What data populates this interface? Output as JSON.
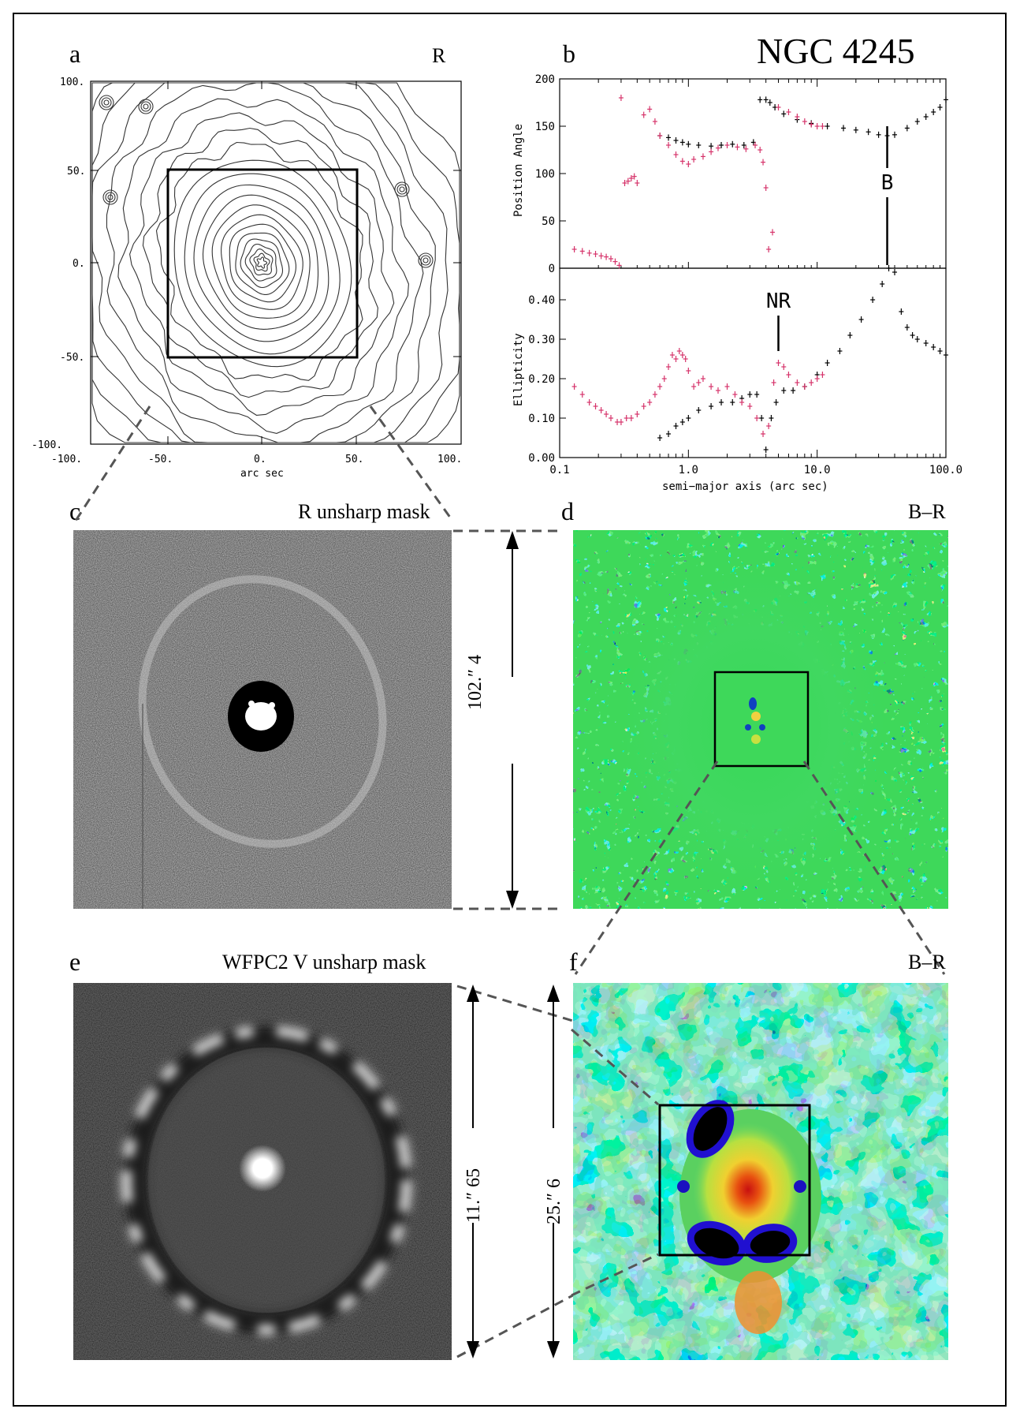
{
  "figure": {
    "galaxy_name": "NGC 4245",
    "panels": {
      "a": {
        "letter": "a",
        "band": "R",
        "xlabel": "arc sec",
        "ticks": [
          "-100.",
          "-50.",
          "0.",
          "50.",
          "100."
        ]
      },
      "b": {
        "letter": "b"
      },
      "c": {
        "letter": "c",
        "title": "R unsharp mask",
        "scale_label": "102.″ 4"
      },
      "d": {
        "letter": "d",
        "title": "B–R"
      },
      "e": {
        "letter": "e",
        "title": "WFPC2 V unsharp mask",
        "scale_label": "11.″ 65"
      },
      "f": {
        "letter": "f",
        "title": "B–R",
        "scale_label": "25.″ 6"
      }
    }
  },
  "chart_data": {
    "type": "scatter",
    "xscale": "log",
    "xlim": [
      0.1,
      100.0
    ],
    "xticks": [
      "0.1",
      "1.0",
      "10.0",
      "100.0"
    ],
    "xlabel": "semi−major axis (arc sec)",
    "colors": {
      "ground": "#000000",
      "hst": "#d6336a"
    },
    "top": {
      "ylabel": "Position Angle",
      "ylim": [
        0,
        200
      ],
      "yticks": [
        "0",
        "50",
        "100",
        "150",
        "200"
      ],
      "annotation": "B",
      "annotation_x": 35,
      "series": [
        {
          "x": [
            0.6,
            0.7,
            0.8,
            0.9,
            1.0,
            1.2,
            1.5,
            1.8,
            2.2,
            2.7,
            3.2,
            3.6,
            4.0,
            4.3,
            4.7,
            5.5,
            7,
            9,
            12,
            16,
            20,
            25,
            30,
            35,
            40,
            50,
            60,
            70,
            80,
            90,
            100
          ],
          "y": [
            140,
            138,
            135,
            133,
            131,
            130,
            129,
            130,
            131,
            130,
            133,
            178,
            178,
            175,
            170,
            163,
            157,
            153,
            150,
            148,
            146,
            144,
            141,
            140,
            141,
            148,
            155,
            160,
            165,
            170,
            178
          ]
        },
        {
          "x": [
            0.13,
            0.15,
            0.17,
            0.19,
            0.21,
            0.23,
            0.25,
            0.27,
            0.29,
            0.3,
            0.32,
            0.34,
            0.36,
            0.38,
            0.4,
            0.45,
            0.5,
            0.55,
            0.6,
            0.7,
            0.8,
            0.9,
            1.0,
            1.1,
            1.3,
            1.5,
            1.7,
            2.0,
            2.4,
            2.8,
            3.3,
            3.6,
            3.8,
            4.0,
            4.2,
            4.5,
            5,
            6,
            7,
            8,
            9,
            10,
            11
          ],
          "y": [
            20,
            18,
            16,
            15,
            13,
            12,
            10,
            7,
            3,
            180,
            90,
            92,
            95,
            97,
            90,
            162,
            168,
            155,
            140,
            130,
            120,
            113,
            110,
            115,
            118,
            123,
            127,
            130,
            128,
            126,
            130,
            125,
            112,
            85,
            20,
            38,
            170,
            165,
            160,
            155,
            152,
            150,
            150
          ]
        }
      ]
    },
    "bottom": {
      "ylabel": "Ellipticity",
      "ylim": [
        0,
        0.48
      ],
      "yticks": [
        "0.00",
        "0.10",
        "0.20",
        "0.30",
        "0.40"
      ],
      "annotation": "NR",
      "annotation_x": 5,
      "series": [
        {
          "x": [
            0.6,
            0.7,
            0.8,
            0.9,
            1.0,
            1.2,
            1.5,
            1.8,
            2.2,
            2.6,
            3.0,
            3.4,
            3.7,
            4.0,
            4.4,
            4.8,
            5.5,
            6.5,
            8,
            10,
            12,
            15,
            18,
            22,
            27,
            32,
            36,
            40,
            45,
            50,
            55,
            60,
            70,
            80,
            90,
            100
          ],
          "y": [
            0.05,
            0.06,
            0.08,
            0.09,
            0.1,
            0.12,
            0.13,
            0.14,
            0.14,
            0.15,
            0.16,
            0.16,
            0.1,
            0.02,
            0.1,
            0.14,
            0.17,
            0.17,
            0.18,
            0.21,
            0.24,
            0.27,
            0.31,
            0.35,
            0.4,
            0.44,
            0.48,
            0.47,
            0.37,
            0.33,
            0.31,
            0.3,
            0.29,
            0.28,
            0.27,
            0.26
          ]
        },
        {
          "x": [
            0.13,
            0.15,
            0.17,
            0.19,
            0.21,
            0.23,
            0.25,
            0.28,
            0.3,
            0.33,
            0.36,
            0.4,
            0.45,
            0.5,
            0.55,
            0.6,
            0.65,
            0.7,
            0.75,
            0.8,
            0.85,
            0.9,
            0.95,
            1.0,
            1.1,
            1.2,
            1.3,
            1.5,
            1.7,
            2.0,
            2.3,
            2.6,
            3.0,
            3.4,
            3.8,
            4.2,
            4.6,
            5.0,
            5.5,
            6,
            7,
            8,
            9,
            10,
            11
          ],
          "y": [
            0.18,
            0.16,
            0.14,
            0.13,
            0.12,
            0.11,
            0.1,
            0.09,
            0.09,
            0.1,
            0.1,
            0.11,
            0.13,
            0.14,
            0.16,
            0.18,
            0.2,
            0.23,
            0.26,
            0.25,
            0.27,
            0.26,
            0.25,
            0.22,
            0.18,
            0.19,
            0.2,
            0.18,
            0.17,
            0.18,
            0.16,
            0.14,
            0.13,
            0.1,
            0.06,
            0.08,
            0.19,
            0.24,
            0.23,
            0.21,
            0.19,
            0.18,
            0.19,
            0.2,
            0.21
          ]
        }
      ]
    }
  }
}
